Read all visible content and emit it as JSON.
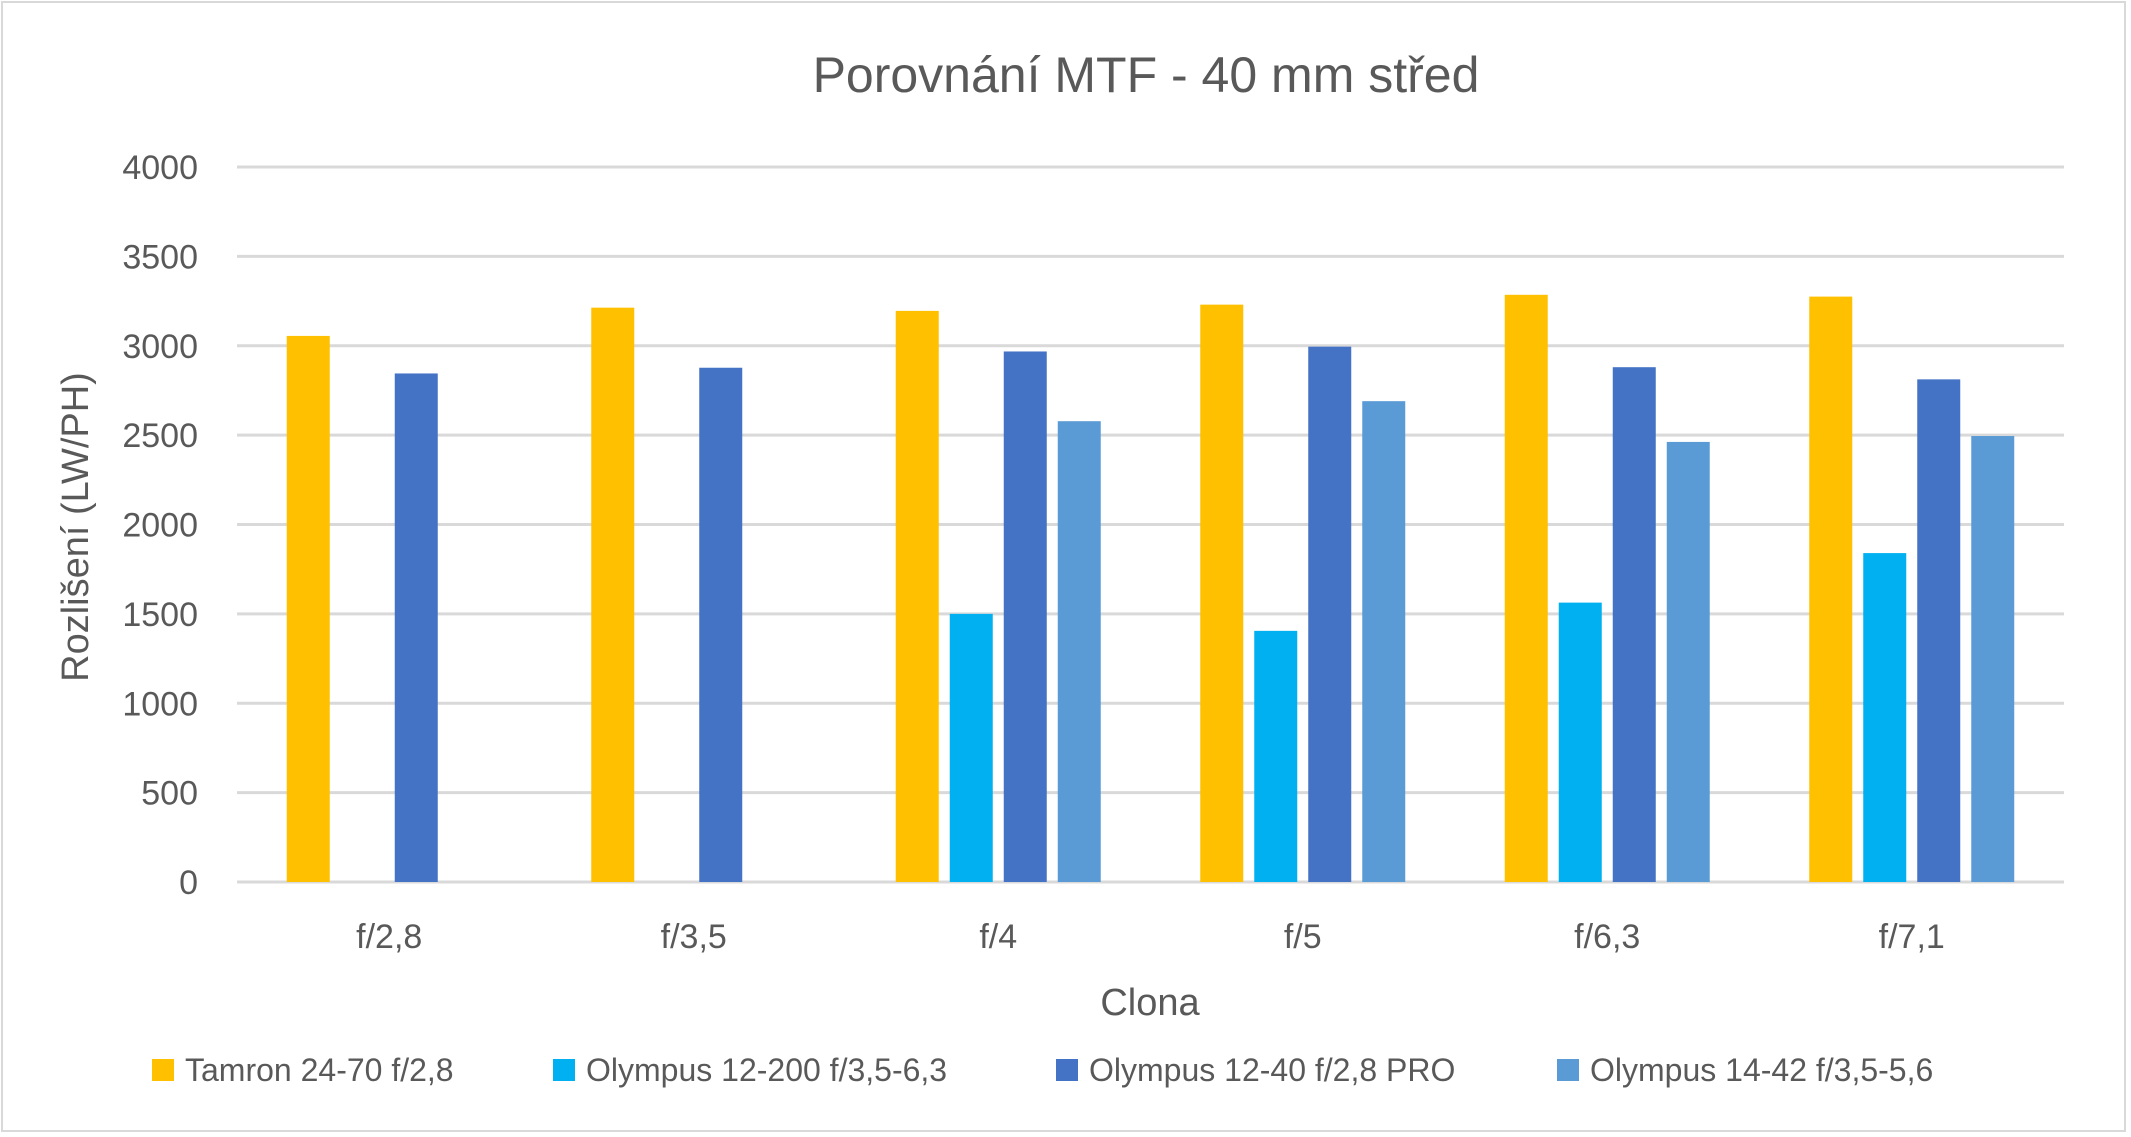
{
  "chart_data": {
    "type": "bar",
    "title": "Porovnání MTF - 40 mm střed",
    "xlabel": "Clona",
    "ylabel": "Rozlišení (LW/PH)",
    "ylim": [
      0,
      4000
    ],
    "yticks": [
      "0",
      "500",
      "1000",
      "1500",
      "2000",
      "2500",
      "3000",
      "3500",
      "4000"
    ],
    "ytick_values": [
      0,
      500,
      1000,
      1500,
      2000,
      2500,
      3000,
      3500,
      4000
    ],
    "grid": true,
    "legend_position": "bottom",
    "categories": [
      "f/2,8",
      "f/3,5",
      "f/4",
      "f/5",
      "f/6,3",
      "f/7,1"
    ],
    "series": [
      {
        "name": "Tamron 24-70 f/2,8",
        "color": "#FFC000",
        "values": [
          3055,
          3213,
          3195,
          3230,
          3285,
          3275
        ]
      },
      {
        "name": "Olympus 12-200 f/3,5-6,3",
        "color": "#00B0F0",
        "values": [
          null,
          null,
          1500,
          1405,
          1563,
          1840
        ]
      },
      {
        "name": "Olympus 12-40 f/2,8 PRO",
        "color": "#4472C4",
        "values": [
          2845,
          2877,
          2968,
          2995,
          2880,
          2812
        ]
      },
      {
        "name": "Olympus 14-42 f/3,5-5,6",
        "color": "#5B9BD5",
        "values": [
          null,
          null,
          2578,
          2690,
          2462,
          2495
        ]
      }
    ]
  }
}
